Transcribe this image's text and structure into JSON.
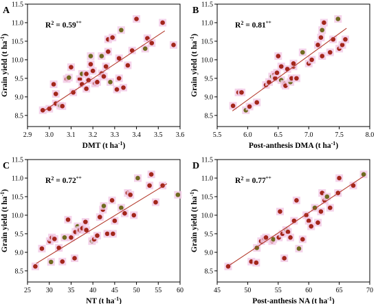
{
  "chart_data": [
    {
      "type": "scatter",
      "panel": "A",
      "xlabel": "DMT (t ha⁻¹)",
      "ylabel": "Grain yield (t ha⁻¹)",
      "annotation": "R² = 0.59**",
      "xlim": [
        2.9,
        3.6
      ],
      "ylim": [
        8.2,
        11.5
      ],
      "xticks": [
        "2.9",
        "3.0",
        "3.1",
        "3.2",
        "3.3",
        "3.4",
        "3.5",
        "3.6"
      ],
      "yticks": [
        "8.5",
        "9.0",
        "9.5",
        "10.0",
        "10.5",
        "11.0",
        "11.5"
      ],
      "fit": [
        [
          2.98,
          8.64
        ],
        [
          3.53,
          10.78
        ]
      ],
      "points": [
        [
          2.97,
          8.64
        ],
        [
          3.0,
          8.68
        ],
        [
          3.03,
          8.82
        ],
        [
          3.05,
          8.76
        ],
        [
          3.06,
          8.75
        ],
        [
          3.03,
          9.08
        ],
        [
          3.02,
          9.34
        ],
        [
          3.08,
          9.48
        ],
        [
          3.09,
          9.52
        ],
        [
          3.1,
          9.8
        ],
        [
          3.11,
          9.12
        ],
        [
          3.14,
          9.48
        ],
        [
          3.15,
          9.34
        ],
        [
          3.15,
          9.62
        ],
        [
          3.17,
          9.62
        ],
        [
          3.18,
          9.45
        ],
        [
          3.17,
          9.22
        ],
        [
          3.19,
          9.88
        ],
        [
          3.19,
          10.1
        ],
        [
          3.2,
          9.7
        ],
        [
          3.21,
          9.36
        ],
        [
          3.22,
          9.4
        ],
        [
          3.24,
          9.63
        ],
        [
          3.24,
          10.1
        ],
        [
          3.25,
          9.55
        ],
        [
          3.26,
          9.82
        ],
        [
          3.27,
          10.22
        ],
        [
          3.27,
          10.55
        ],
        [
          3.28,
          9.4
        ],
        [
          3.29,
          10.6
        ],
        [
          3.31,
          9.2
        ],
        [
          3.32,
          9.5
        ],
        [
          3.32,
          10.04
        ],
        [
          3.33,
          10.8
        ],
        [
          3.34,
          9.25
        ],
        [
          3.36,
          9.85
        ],
        [
          3.38,
          10.25
        ],
        [
          3.4,
          11.1
        ],
        [
          3.44,
          10.3
        ],
        [
          3.45,
          10.58
        ],
        [
          3.47,
          10.45
        ],
        [
          3.52,
          11.0
        ],
        [
          3.57,
          10.4
        ]
      ]
    },
    {
      "type": "scatter",
      "panel": "B",
      "xlabel": "Post-anthesis DMA (t ha⁻¹)",
      "ylabel": "Grain yield (t ha⁻¹)",
      "annotation": "R² = 0.81**",
      "xlim": [
        5.5,
        8.0
      ],
      "ylim": [
        8.2,
        11.5
      ],
      "xticks": [
        "5.5",
        "6.0",
        "6.5",
        "7.0",
        "7.5",
        "8.0"
      ],
      "yticks": [
        "8.5",
        "9.0",
        "9.5",
        "10.0",
        "10.5",
        "11.0",
        "11.5"
      ],
      "fit": [
        [
          5.75,
          8.62
        ],
        [
          7.62,
          10.85
        ]
      ],
      "points": [
        [
          5.76,
          8.76
        ],
        [
          5.85,
          9.12
        ],
        [
          5.9,
          9.12
        ],
        [
          5.97,
          8.64
        ],
        [
          6.03,
          8.74
        ],
        [
          6.15,
          8.85
        ],
        [
          6.3,
          9.32
        ],
        [
          6.35,
          9.4
        ],
        [
          6.4,
          9.55
        ],
        [
          6.44,
          9.6
        ],
        [
          6.45,
          9.5
        ],
        [
          6.48,
          9.65
        ],
        [
          6.5,
          10.1
        ],
        [
          6.55,
          9.45
        ],
        [
          6.55,
          9.82
        ],
        [
          6.6,
          9.35
        ],
        [
          6.62,
          9.3
        ],
        [
          6.65,
          9.75
        ],
        [
          6.7,
          9.4
        ],
        [
          6.72,
          9.5
        ],
        [
          6.75,
          9.82
        ],
        [
          6.75,
          9.9
        ],
        [
          6.8,
          9.5
        ],
        [
          6.9,
          10.2
        ],
        [
          7.0,
          9.9
        ],
        [
          7.05,
          10.0
        ],
        [
          7.15,
          10.4
        ],
        [
          7.2,
          10.6
        ],
        [
          7.22,
          10.8
        ],
        [
          7.22,
          10.1
        ],
        [
          7.25,
          11.0
        ],
        [
          7.35,
          10.2
        ],
        [
          7.4,
          10.55
        ],
        [
          7.48,
          11.1
        ],
        [
          7.5,
          10.3
        ],
        [
          7.55,
          10.4
        ],
        [
          7.6,
          10.55
        ]
      ]
    },
    {
      "type": "scatter",
      "panel": "C",
      "xlabel": "NT (t ha⁻¹)",
      "ylabel": "Grain yield (t ha⁻¹)",
      "annotation": "R² = 0.72**",
      "xlim": [
        25,
        60
      ],
      "ylim": [
        8.2,
        11.5
      ],
      "xticks": [
        "25",
        "30",
        "35",
        "40",
        "45",
        "50",
        "55",
        "60"
      ],
      "yticks": [
        "8.5",
        "9.0",
        "9.5",
        "10.0",
        "10.5",
        "11.0",
        "11.5"
      ],
      "fit": [
        [
          27.0,
          8.7
        ],
        [
          57.0,
          10.85
        ]
      ],
      "points": [
        [
          26.8,
          8.62
        ],
        [
          28.3,
          9.1
        ],
        [
          30.1,
          9.3
        ],
        [
          30.4,
          8.74
        ],
        [
          30.6,
          9.4
        ],
        [
          31.2,
          9.36
        ],
        [
          32.2,
          9.12
        ],
        [
          33.0,
          8.75
        ],
        [
          33.5,
          9.4
        ],
        [
          34.3,
          9.88
        ],
        [
          35.0,
          9.4
        ],
        [
          35.8,
          8.84
        ],
        [
          36.0,
          9.55
        ],
        [
          36.5,
          9.7
        ],
        [
          37.0,
          9.6
        ],
        [
          37.6,
          9.65
        ],
        [
          38.3,
          9.82
        ],
        [
          38.5,
          9.6
        ],
        [
          39.8,
          9.3
        ],
        [
          40.3,
          9.35
        ],
        [
          41.0,
          9.45
        ],
        [
          41.6,
          9.95
        ],
        [
          42.3,
          10.15
        ],
        [
          42.5,
          10.25
        ],
        [
          43.3,
          9.5
        ],
        [
          44.4,
          10.4
        ],
        [
          44.6,
          9.5
        ],
        [
          45.0,
          9.85
        ],
        [
          46.5,
          10.2
        ],
        [
          47.3,
          10.05
        ],
        [
          48.0,
          10.6
        ],
        [
          48.6,
          10.55
        ],
        [
          49.4,
          10.0
        ],
        [
          50.3,
          11.0
        ],
        [
          53.0,
          10.8
        ],
        [
          53.4,
          11.1
        ],
        [
          54.4,
          10.35
        ],
        [
          56.0,
          10.8
        ],
        [
          59.5,
          10.55
        ]
      ]
    },
    {
      "type": "scatter",
      "panel": "D",
      "xlabel": "Post-anthesis NA (t ha⁻¹)",
      "ylabel": "Grain yield (t ha⁻¹)",
      "annotation": "R² = 0.77**",
      "xlim": [
        45,
        70
      ],
      "ylim": [
        8.2,
        11.5
      ],
      "xticks": [
        "45",
        "50",
        "55",
        "60",
        "65",
        "70"
      ],
      "yticks": [
        "8.5",
        "9.0",
        "9.5",
        "10.0",
        "10.5",
        "11.0",
        "11.5"
      ],
      "fit": [
        [
          47.0,
          8.65
        ],
        [
          69.0,
          11.05
        ]
      ],
      "points": [
        [
          46.8,
          8.62
        ],
        [
          50.6,
          8.75
        ],
        [
          51.4,
          8.72
        ],
        [
          51.5,
          9.12
        ],
        [
          52.2,
          9.3
        ],
        [
          52.7,
          9.36
        ],
        [
          53.0,
          9.4
        ],
        [
          54.0,
          9.3
        ],
        [
          54.2,
          9.35
        ],
        [
          55.1,
          9.4
        ],
        [
          55.3,
          10.1
        ],
        [
          55.7,
          9.5
        ],
        [
          56.0,
          8.84
        ],
        [
          56.3,
          9.6
        ],
        [
          56.6,
          9.55
        ],
        [
          57.0,
          9.4
        ],
        [
          57.6,
          9.85
        ],
        [
          58.0,
          10.4
        ],
        [
          58.4,
          9.1
        ],
        [
          59.0,
          9.35
        ],
        [
          59.6,
          10.0
        ],
        [
          60.0,
          9.85
        ],
        [
          60.4,
          9.7
        ],
        [
          61.0,
          10.2
        ],
        [
          61.5,
          9.8
        ],
        [
          62.0,
          10.1
        ],
        [
          62.2,
          10.6
        ],
        [
          62.6,
          10.4
        ],
        [
          63.0,
          10.5
        ],
        [
          63.5,
          10.2
        ],
        [
          64.8,
          10.6
        ],
        [
          65.0,
          11.0
        ],
        [
          67.3,
          10.8
        ],
        [
          69.0,
          11.1
        ]
      ]
    }
  ]
}
